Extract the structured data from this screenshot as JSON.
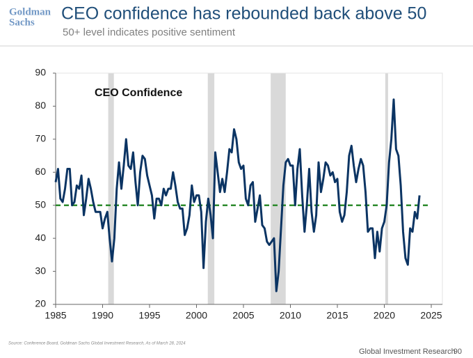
{
  "logo": [
    "Goldman",
    "Sachs"
  ],
  "footer": {
    "source": "Source: Conference Board, Goldman Sachs Global Investment Research, As of March 28, 2024",
    "brand": "Global Investment Research",
    "page": "90"
  },
  "chart_data": {
    "type": "line",
    "title": "CEO confidence has rebounded back above 50",
    "subtitle": "50+ level indicates positive sentiment",
    "x": [
      1985,
      1985.25,
      1985.5,
      1985.75,
      1986,
      1986.25,
      1986.5,
      1986.75,
      1987,
      1987.25,
      1987.5,
      1987.75,
      1988,
      1988.25,
      1988.5,
      1988.75,
      1989,
      1989.25,
      1989.5,
      1989.75,
      1990,
      1990.25,
      1990.5,
      1990.75,
      1991,
      1991.25,
      1991.5,
      1991.75,
      1992,
      1992.25,
      1992.5,
      1992.75,
      1993,
      1993.25,
      1993.5,
      1993.75,
      1994,
      1994.25,
      1994.5,
      1994.75,
      1995,
      1995.25,
      1995.5,
      1995.75,
      1996,
      1996.25,
      1996.5,
      1996.75,
      1997,
      1997.25,
      1997.5,
      1997.75,
      1998,
      1998.25,
      1998.5,
      1998.75,
      1999,
      1999.25,
      1999.5,
      1999.75,
      2000,
      2000.25,
      2000.5,
      2000.75,
      2001,
      2001.25,
      2001.5,
      2001.75,
      2002,
      2002.25,
      2002.5,
      2002.75,
      2003,
      2003.25,
      2003.5,
      2003.75,
      2004,
      2004.25,
      2004.5,
      2004.75,
      2005,
      2005.25,
      2005.5,
      2005.75,
      2006,
      2006.25,
      2006.5,
      2006.75,
      2007,
      2007.25,
      2007.5,
      2007.75,
      2008,
      2008.25,
      2008.5,
      2008.75,
      2009,
      2009.25,
      2009.5,
      2009.75,
      2010,
      2010.25,
      2010.5,
      2010.75,
      2011,
      2011.25,
      2011.5,
      2011.75,
      2012,
      2012.25,
      2012.5,
      2012.75,
      2013,
      2013.25,
      2013.5,
      2013.75,
      2014,
      2014.25,
      2014.5,
      2014.75,
      2015,
      2015.25,
      2015.5,
      2015.75,
      2016,
      2016.25,
      2016.5,
      2016.75,
      2017,
      2017.25,
      2017.5,
      2017.75,
      2018,
      2018.25,
      2018.5,
      2018.75,
      2019,
      2019.25,
      2019.5,
      2019.75,
      2020,
      2020.25,
      2020.5,
      2020.75,
      2021,
      2021.25,
      2021.5,
      2021.75,
      2022,
      2022.25,
      2022.5,
      2022.75,
      2023,
      2023.25,
      2023.5,
      2023.75
    ],
    "series": [
      {
        "name": "CEO Confidence",
        "color": "#0b3463",
        "values": [
          57,
          61,
          52,
          51,
          55,
          61,
          61,
          50,
          51,
          56,
          55,
          59,
          47,
          52,
          58,
          55,
          51,
          48,
          48,
          48,
          43,
          46,
          48,
          40,
          33,
          40,
          55,
          63,
          55,
          62,
          70,
          62,
          61,
          66,
          57,
          50,
          60,
          65,
          64,
          59,
          56,
          53,
          46,
          52,
          52,
          50,
          55,
          53,
          55,
          55,
          60,
          56,
          51,
          49,
          49,
          41,
          43,
          47,
          56,
          51,
          53,
          53,
          48,
          31,
          45,
          52,
          47,
          40,
          66,
          60,
          54,
          58,
          54,
          60,
          67,
          66,
          73,
          70,
          63,
          61,
          62,
          52,
          50,
          56,
          57,
          45,
          49,
          53,
          44,
          43,
          39,
          38,
          39,
          40,
          24,
          30,
          43,
          56,
          63,
          64,
          62,
          62,
          50,
          61,
          67,
          53,
          42,
          50,
          61,
          48,
          42,
          47,
          63,
          54,
          58,
          63,
          62,
          59,
          60,
          57,
          58,
          48,
          45,
          47,
          54,
          65,
          68,
          62,
          57,
          61,
          64,
          62,
          54,
          42,
          43,
          43,
          34,
          42,
          36,
          43,
          45,
          50,
          63,
          70,
          82,
          67,
          65,
          56,
          42,
          34,
          32,
          43,
          42,
          48,
          46,
          53
        ]
      }
    ],
    "xlim": [
      1985,
      2025
    ],
    "xticks": [
      1985,
      1990,
      1995,
      2000,
      2005,
      2010,
      2015,
      2020,
      2025
    ],
    "ylim": [
      20,
      90
    ],
    "yticks": [
      20,
      30,
      40,
      50,
      60,
      70,
      80,
      90
    ],
    "reference_line": {
      "value": 50,
      "color": "#2e8b2e"
    },
    "shaded_periods": [
      [
        1990.6,
        1991.2
      ],
      [
        2001.2,
        2001.9
      ],
      [
        2007.9,
        2009.5
      ],
      [
        2020.1,
        2020.4
      ]
    ],
    "shade_color": "#d9d9d9"
  }
}
